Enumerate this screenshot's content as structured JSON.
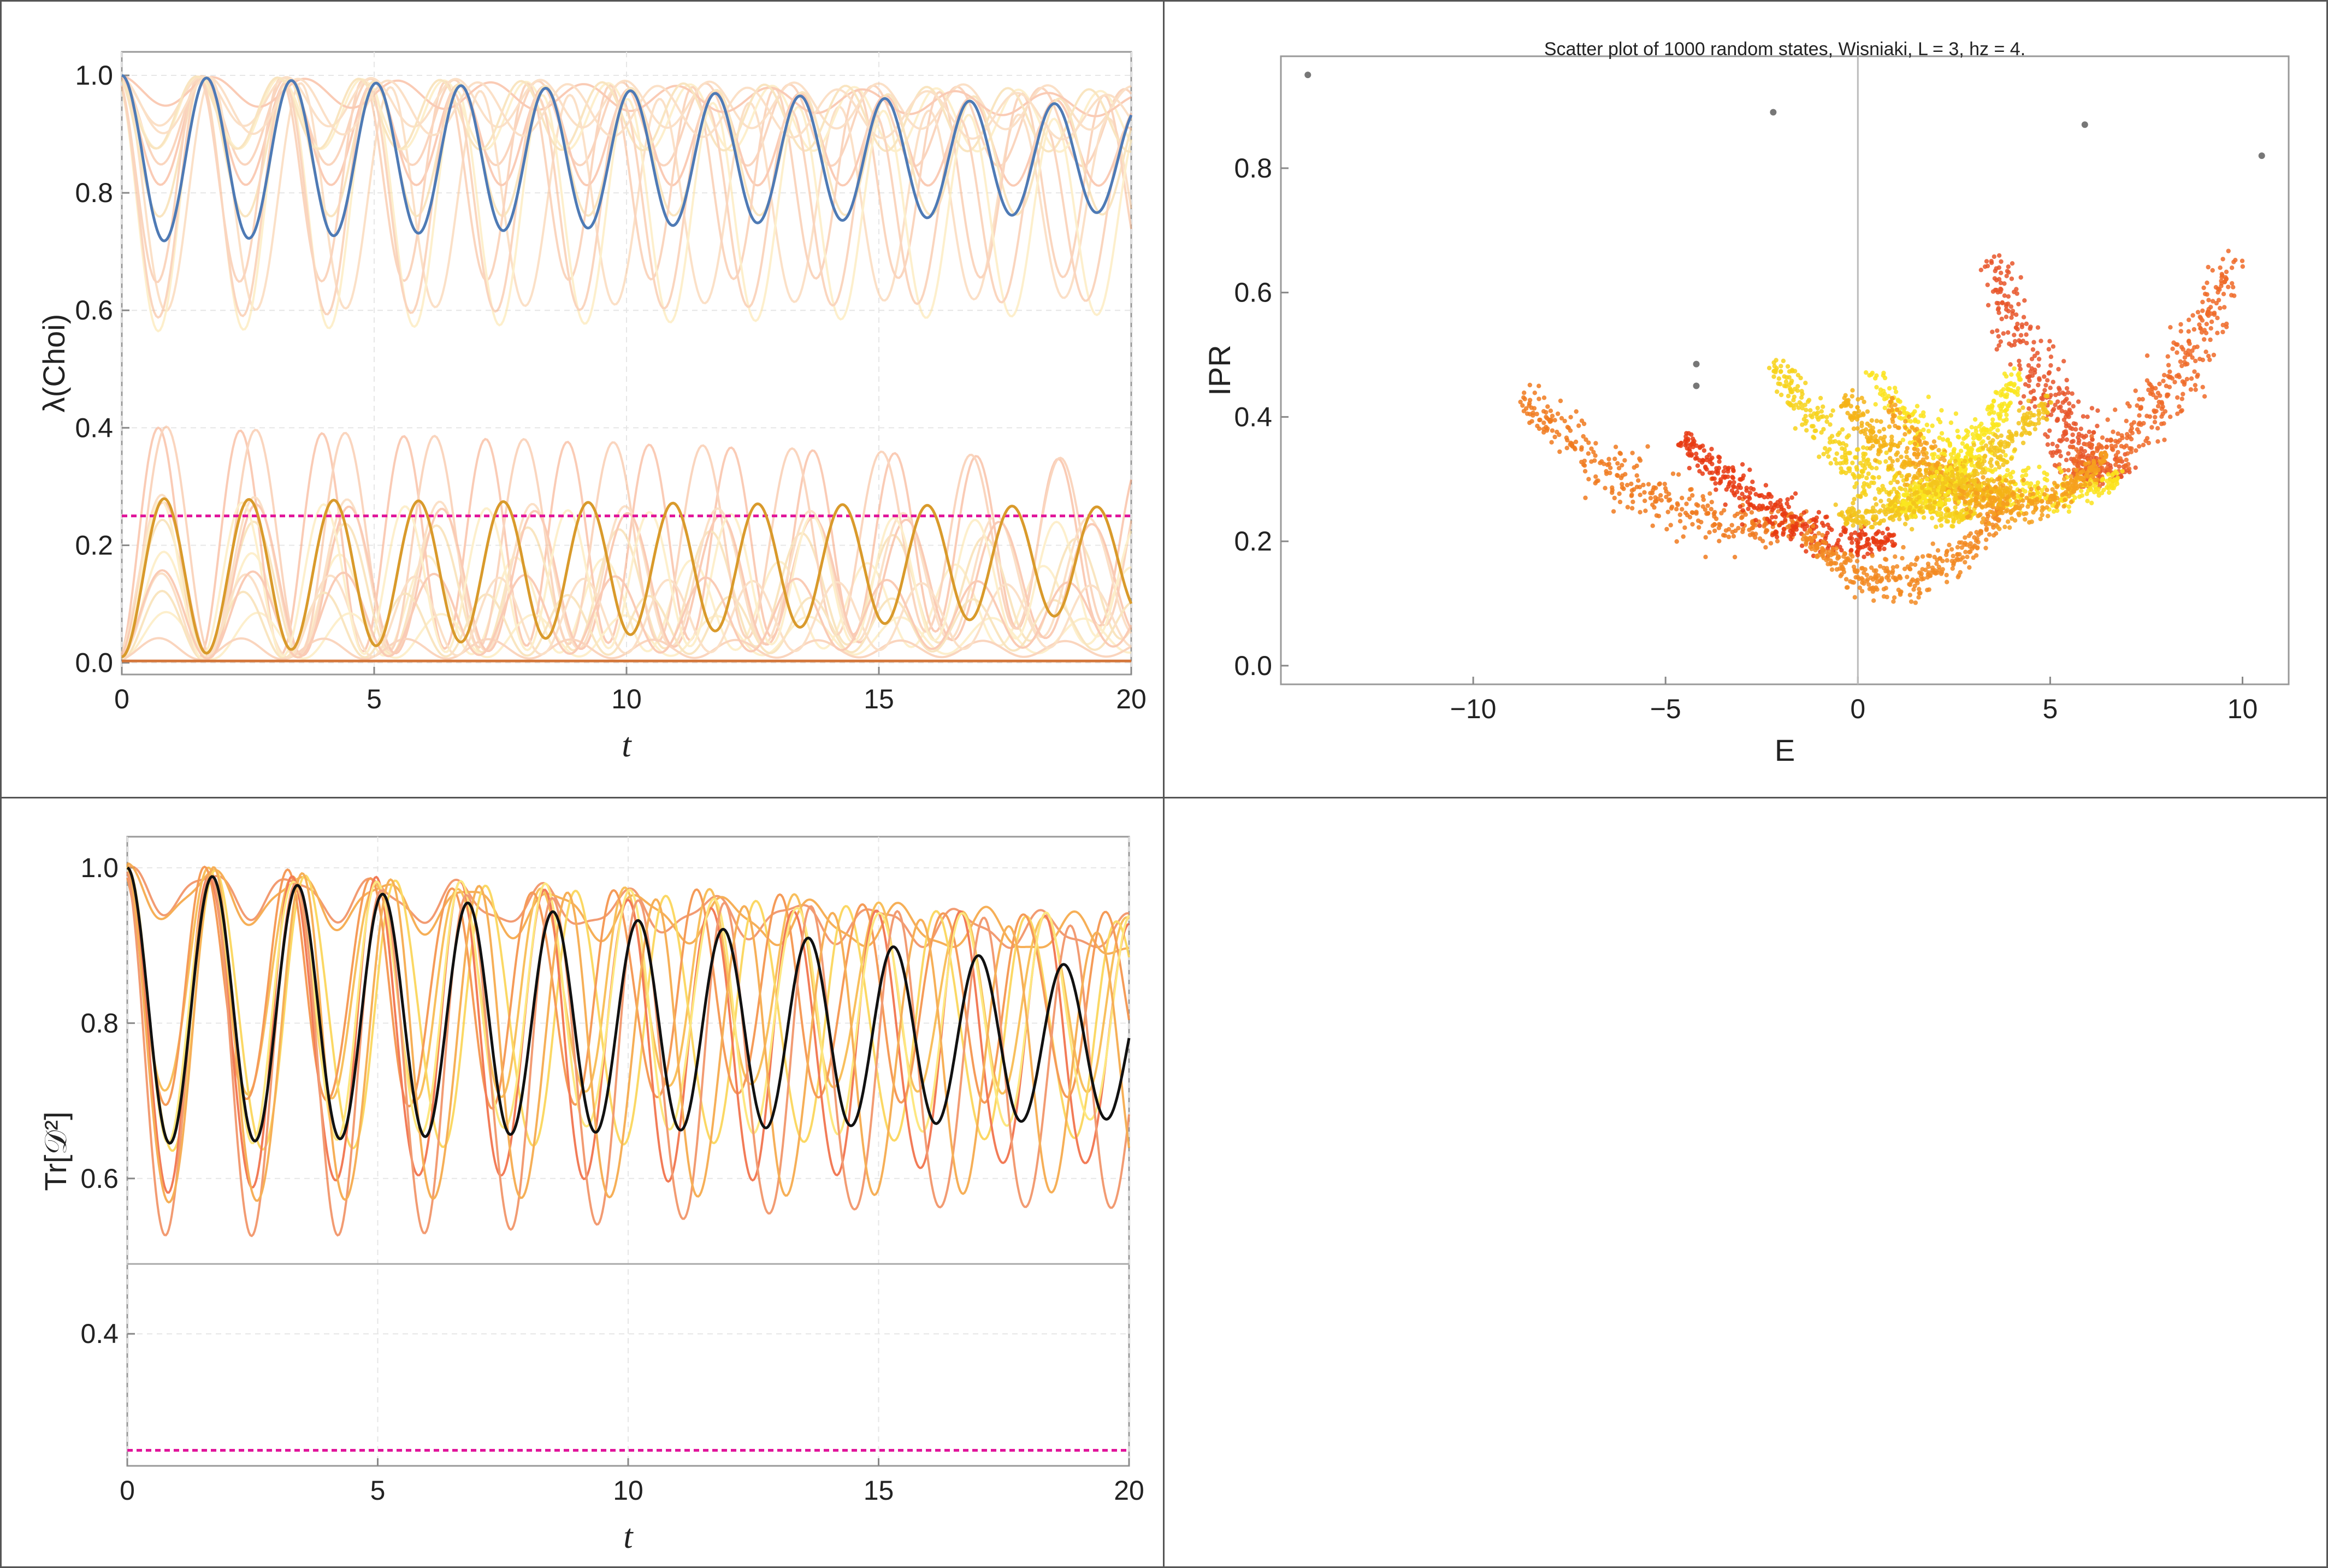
{
  "chart_data": [
    {
      "id": "choi",
      "type": "line",
      "xlabel": "t",
      "ylabel": "λ(Choi)",
      "xlim": [
        0,
        20
      ],
      "ylim": [
        -0.02,
        1.04
      ],
      "xticks": [
        0,
        5,
        10,
        15,
        20
      ],
      "xtick_labels": [
        "0",
        "5",
        "10",
        "15",
        "20"
      ],
      "yticks": [
        0.0,
        0.2,
        0.4,
        0.6,
        0.8,
        1.0
      ],
      "ytick_labels": [
        "0.0",
        "0.2",
        "0.4",
        "0.6",
        "0.8",
        "1.0"
      ],
      "grid": true,
      "reference_line": {
        "y": 0.25,
        "color": "#e0149a",
        "style": "dashed"
      },
      "highlight_series": [
        {
          "color": "#4e7ab5",
          "period": 1.68,
          "center": 0.858,
          "amplitude_start": 0.142,
          "amplitude_end": 0.09
        },
        {
          "color": "#d99a2b",
          "period": 1.68,
          "center": 0.145,
          "amplitude_start": 0.135,
          "amplitude_end": 0.09
        },
        {
          "color": "#d4763a",
          "constant": 0.003
        }
      ],
      "background_series_count": 24,
      "colors": {
        "background": [
          "#f6b48a",
          "#f9c79a",
          "#fde3a3",
          "#f7a27a",
          "#f5d08e"
        ]
      }
    },
    {
      "id": "ipr",
      "type": "scatter",
      "title": "Scatter plot of 1000 random states, Wisniaki, L = 3, hz = 4.",
      "xlabel": "E",
      "ylabel": "IPR",
      "xlim": [
        -15,
        11.2
      ],
      "ylim": [
        -0.03,
        0.98
      ],
      "xticks": [
        -10,
        -5,
        0,
        5,
        10
      ],
      "xtick_labels": [
        "−10",
        "−5",
        "0",
        "5",
        "10"
      ],
      "yticks": [
        0.0,
        0.2,
        0.4,
        0.6,
        0.8
      ],
      "ytick_labels": [
        "0.0",
        "0.2",
        "0.4",
        "0.6",
        "0.8"
      ],
      "eigenstates": [
        {
          "x": -14.3,
          "y": 0.95
        },
        {
          "x": -2.2,
          "y": 0.89
        },
        {
          "x": 5.9,
          "y": 0.87
        },
        {
          "x": 10.5,
          "y": 0.82
        },
        {
          "x": -4.2,
          "y": 0.485
        },
        {
          "x": -4.2,
          "y": 0.45
        }
      ],
      "bands": [
        {
          "from": [
            -8.7,
            0.44
          ],
          "to": [
            -1.5,
            0.225
          ],
          "sag": 0.07,
          "width": 0.045,
          "color": "#f07a1f"
        },
        {
          "from": [
            -4.6,
            0.37
          ],
          "to": [
            1.0,
            0.2
          ],
          "sag": 0.05,
          "width": 0.035,
          "color": "#e83a12"
        },
        {
          "from": [
            -1.5,
            0.22
          ],
          "to": [
            3.8,
            0.26
          ],
          "sag": 0.1,
          "width": 0.035,
          "color": "#f28a22"
        },
        {
          "from": [
            3.5,
            0.66
          ],
          "to": [
            6.8,
            0.3
          ],
          "sag": 0.07,
          "width": 0.04,
          "color": "#e8562a"
        },
        {
          "from": [
            9.8,
            0.66
          ],
          "to": [
            5.5,
            0.3
          ],
          "sag": 0.07,
          "width": 0.045,
          "color": "#ef6a28"
        },
        {
          "from": [
            -2.2,
            0.49
          ],
          "to": [
            3.0,
            0.24
          ],
          "sag": 0.06,
          "width": 0.035,
          "color": "#f7d21a"
        },
        {
          "from": [
            0.2,
            0.48
          ],
          "to": [
            6.8,
            0.3
          ],
          "sag": 0.09,
          "width": 0.04,
          "color": "#fbe31c"
        },
        {
          "from": [
            -0.4,
            0.43
          ],
          "to": [
            4.0,
            0.28
          ],
          "sag": 0.05,
          "width": 0.03,
          "color": "#f5b316"
        },
        {
          "from": [
            0.8,
            0.42
          ],
          "to": [
            6.5,
            0.34
          ],
          "sag": 0.12,
          "width": 0.035,
          "color": "#f6a01d"
        },
        {
          "from": [
            4.2,
            0.47
          ],
          "to": [
            0.8,
            0.25
          ],
          "sag": 0.05,
          "width": 0.03,
          "color": "#fae61f"
        },
        {
          "from": [
            5.0,
            0.43
          ],
          "to": [
            -0.5,
            0.24
          ],
          "sag": 0.05,
          "width": 0.03,
          "color": "#f3c41c"
        }
      ],
      "point_count": 1000
    },
    {
      "id": "purity",
      "type": "line",
      "xlabel": "t",
      "ylabel": "Tr[𝒟²]",
      "xlim": [
        0,
        20
      ],
      "ylim": [
        0.23,
        1.04
      ],
      "xticks": [
        0,
        5,
        10,
        15,
        20
      ],
      "xtick_labels": [
        "0",
        "5",
        "10",
        "15",
        "20"
      ],
      "yticks": [
        0.4,
        0.6,
        0.8,
        1.0
      ],
      "ytick_labels": [
        "0.4",
        "0.6",
        "0.8",
        "1.0"
      ],
      "grid": true,
      "reference_lines": [
        {
          "y": 0.25,
          "color": "#e0149a",
          "style": "dashed"
        },
        {
          "y": 0.49,
          "color": "#aaaaaa",
          "style": "solid"
        }
      ],
      "highlight_series": {
        "color": "#111111",
        "period": 1.7,
        "center": 0.822,
        "amplitude_start": 0.178,
        "amplitude_end": 0.095
      },
      "colors": {
        "background": [
          "#f08a5a",
          "#f5a23a",
          "#f7b540",
          "#fbd24a",
          "#f48a3c",
          "#f0643a",
          "#fde36a"
        ]
      }
    }
  ]
}
